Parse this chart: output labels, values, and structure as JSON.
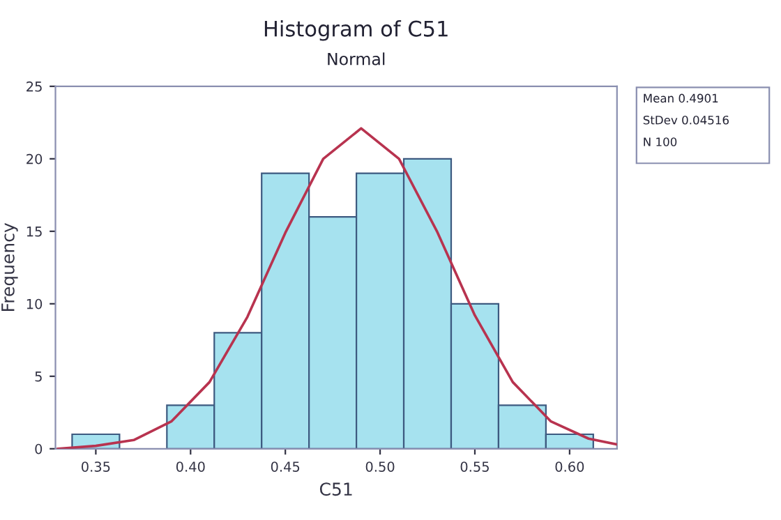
{
  "chart_data": {
    "type": "histogram",
    "title": "Histogram of C51",
    "subtitle": "Normal",
    "xlabel": "C51",
    "ylabel": "Frequency",
    "bins": [
      0.3375,
      0.3625,
      0.3875,
      0.4125,
      0.4375,
      0.4625,
      0.4875,
      0.5125,
      0.5375,
      0.5625,
      0.5875,
      0.6125
    ],
    "series": [
      {
        "color": "#a6e2ef",
        "values": [
          1,
          0,
          3,
          8,
          19,
          16,
          19,
          20,
          10,
          3,
          1
        ]
      },
      {
        "type": "line",
        "color": "#b8334f",
        "x": [
          0.33,
          0.35,
          0.37,
          0.39,
          0.41,
          0.43,
          0.45,
          0.47,
          0.49,
          0.51,
          0.53,
          0.55,
          0.57,
          0.59,
          0.61,
          0.625
        ],
        "values": [
          0.0,
          0.2,
          0.6,
          1.9,
          4.6,
          9.1,
          14.9,
          20.0,
          22.1,
          20.0,
          15.0,
          9.2,
          4.6,
          1.9,
          0.7,
          0.3
        ]
      }
    ],
    "xlim": [
      0.3287,
      0.625
    ],
    "ylim": [
      0,
      25
    ],
    "xticks": [
      {
        "value": 0.35,
        "label": "0.35"
      },
      {
        "value": 0.4,
        "label": "0.40"
      },
      {
        "value": 0.45,
        "label": "0.45"
      },
      {
        "value": 0.5,
        "label": "0.50"
      },
      {
        "value": 0.55,
        "label": "0.55"
      },
      {
        "value": 0.6,
        "label": "0.60"
      }
    ],
    "yticks": [
      0,
      5,
      10,
      15,
      20,
      25
    ],
    "grid": false,
    "legend": false,
    "annotations": [
      "Mean 0.4901",
      "StDev 0.04516",
      "N 100"
    ]
  }
}
